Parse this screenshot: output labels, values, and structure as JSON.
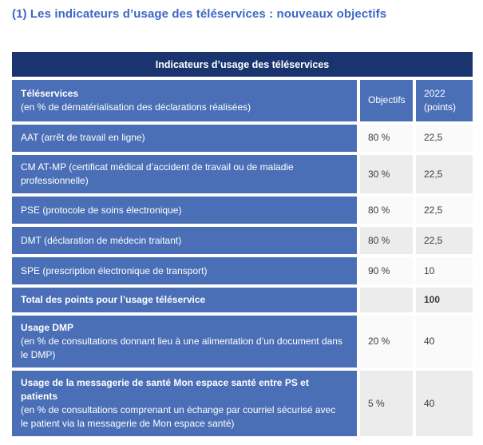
{
  "page_title": "(1) Les indicateurs d’usage des téléservices : nouveaux objectifs",
  "table": {
    "caption": "Indicateurs d’usage des téléservices",
    "header": {
      "col1_title": "Téléservices",
      "col1_subtitle": "(en % de dématérialisation des déclarations réalisées)",
      "col2": "Objectifs",
      "col3_line1": "2022",
      "col3_line2": "(points)"
    },
    "rows": [
      {
        "label": "AAT (arrêt de travail en ligne)",
        "objectif": "80 %",
        "points": "22,5"
      },
      {
        "label": "CM AT-MP (certificat médical d’accident de travail ou de maladie professionnelle)",
        "objectif": "30 %",
        "points": "22,5"
      },
      {
        "label": "PSE (protocole de soins électronique)",
        "objectif": "80 %",
        "points": "22,5"
      },
      {
        "label": "DMT (déclaration de médecin traitant)",
        "objectif": "80 %",
        "points": "22,5"
      },
      {
        "label": "SPE (prescription électronique de transport)",
        "objectif": "90 %",
        "points": "10"
      },
      {
        "label_bold": "Total des points pour l’usage téléservice",
        "objectif": "",
        "points": "100"
      },
      {
        "label_bold": "Usage DMP",
        "label_sub": "(en % de consultations donnant lieu à une alimentation d’un document dans le DMP)",
        "objectif": "20 %",
        "points": "40"
      },
      {
        "label_bold": "Usage de la messagerie de santé Mon espace santé entre PS et patients",
        "label_sub": "(en % de consultations comprenant un échange par courriel sécurisé avec le patient via la messagerie de Mon espace santé)",
        "objectif": "5 %",
        "points": "40"
      }
    ],
    "colors": {
      "navy": "#1a346f",
      "row_blue": "#4a6fb6",
      "title_blue": "#3c68c4",
      "cell_light": "#fafafa",
      "cell_dark": "#ececec"
    }
  }
}
